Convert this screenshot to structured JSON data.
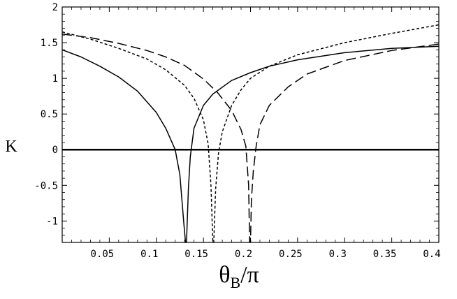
{
  "chart_data": {
    "type": "line",
    "title": "",
    "xlabel_main": "θ",
    "xlabel_sub": "B",
    "xlabel_tail": "/π",
    "ylabel": "K",
    "xlim": [
      0,
      0.4
    ],
    "ylim": [
      -1.3,
      2
    ],
    "x_ticks": [
      0.05,
      0.1,
      0.15,
      0.2,
      0.25,
      0.3,
      0.35,
      0.4
    ],
    "x_tick_labels": [
      "0.05",
      "0.1",
      "0.15",
      "0.2",
      "0.25",
      "0.3",
      "0.35",
      "0.4"
    ],
    "y_ticks": [
      -1,
      -0.5,
      0,
      0.5,
      1,
      1.5,
      2
    ],
    "y_tick_labels": [
      "-1",
      "-0.5",
      "0",
      "0.5",
      "1",
      "1.5",
      "2"
    ],
    "grid": false,
    "legend": "none",
    "series": [
      {
        "style": "solid",
        "color": "#000000",
        "x": [
          0,
          0.02,
          0.04,
          0.06,
          0.08,
          0.1,
          0.11,
          0.12,
          0.125,
          0.129,
          0.131,
          0.132,
          0.134,
          0.136,
          0.14,
          0.15,
          0.16,
          0.18,
          0.2,
          0.22,
          0.25,
          0.3,
          0.35,
          0.4
        ],
        "y": [
          1.4,
          1.3,
          1.17,
          1.02,
          0.82,
          0.52,
          0.3,
          0.0,
          -0.35,
          -1.0,
          -1.3,
          -1.3,
          -0.55,
          -0.1,
          0.3,
          0.62,
          0.78,
          0.97,
          1.08,
          1.17,
          1.26,
          1.36,
          1.42,
          1.45
        ]
      },
      {
        "style": "dotted",
        "color": "#000000",
        "x": [
          0,
          0.03,
          0.06,
          0.09,
          0.11,
          0.13,
          0.14,
          0.15,
          0.155,
          0.158,
          0.16,
          0.161,
          0.163,
          0.166,
          0.17,
          0.18,
          0.19,
          0.2,
          0.22,
          0.25,
          0.3,
          0.35,
          0.4
        ],
        "y": [
          1.65,
          1.55,
          1.42,
          1.27,
          1.12,
          0.9,
          0.72,
          0.42,
          0.08,
          -0.5,
          -1.3,
          -1.3,
          -0.55,
          -0.05,
          0.25,
          0.62,
          0.84,
          1.0,
          1.17,
          1.33,
          1.5,
          1.63,
          1.75
        ]
      },
      {
        "style": "dashed",
        "color": "#000000",
        "x": [
          0,
          0.03,
          0.06,
          0.09,
          0.11,
          0.13,
          0.15,
          0.165,
          0.18,
          0.19,
          0.195,
          0.198,
          0.199,
          0.2,
          0.201,
          0.203,
          0.206,
          0.21,
          0.22,
          0.24,
          0.26,
          0.3,
          0.35,
          0.4
        ],
        "y": [
          1.62,
          1.57,
          1.49,
          1.39,
          1.3,
          1.18,
          0.99,
          0.8,
          0.55,
          0.28,
          0.05,
          -0.5,
          -1.3,
          -1.3,
          -0.7,
          -0.3,
          0.05,
          0.35,
          0.62,
          0.88,
          1.06,
          1.25,
          1.39,
          1.48
        ]
      }
    ]
  }
}
